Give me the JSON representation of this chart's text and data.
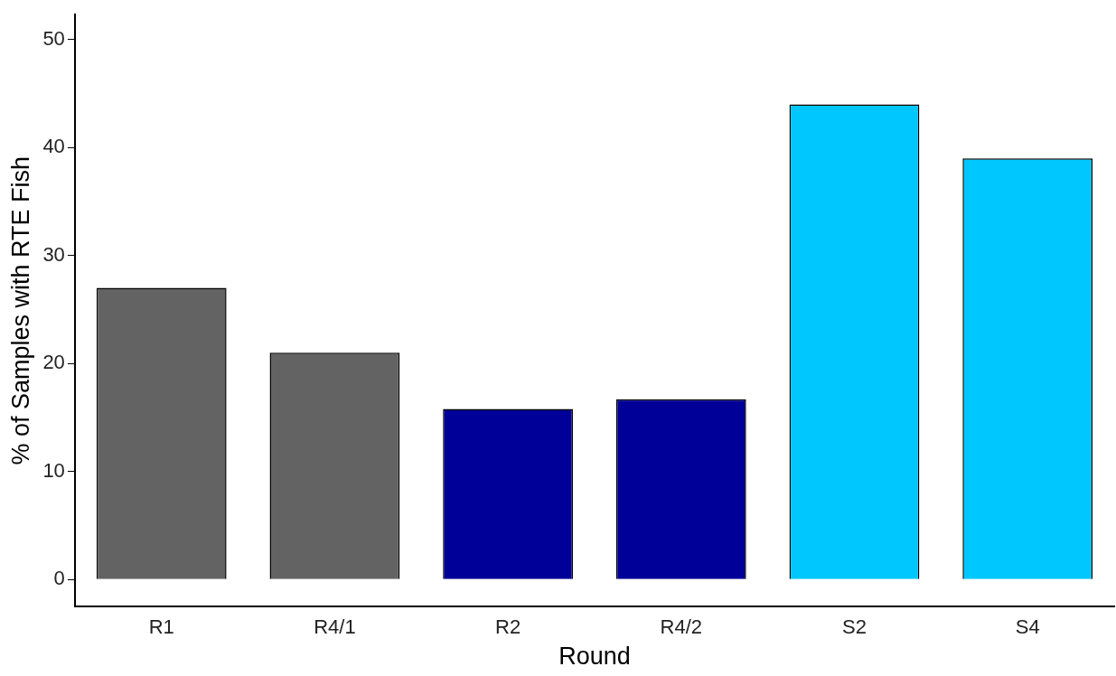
{
  "chart_data": {
    "type": "bar",
    "xlabel": "Round",
    "ylabel": "% of Samples with RTE Fish",
    "categories": [
      "R1",
      "R4/1",
      "R2",
      "R4/2",
      "S2",
      "S4"
    ],
    "values": [
      27,
      21,
      15.8,
      16.7,
      44,
      39
    ],
    "colors": [
      "#636363",
      "#636363",
      "#000099",
      "#000099",
      "#00c8ff",
      "#00c8ff"
    ],
    "ylim": [
      -2.5,
      52.3
    ],
    "yticks": [
      0,
      10,
      20,
      30,
      40,
      50
    ],
    "grid": false,
    "legend": false
  }
}
